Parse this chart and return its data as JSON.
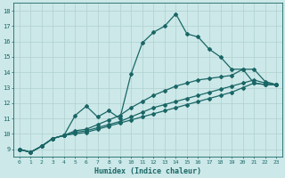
{
  "xlabel": "Humidex (Indice chaleur)",
  "xlim": [
    -0.5,
    23.5
  ],
  "ylim": [
    8.5,
    18.5
  ],
  "xticks": [
    0,
    1,
    2,
    3,
    4,
    5,
    6,
    7,
    8,
    9,
    10,
    11,
    12,
    13,
    14,
    15,
    16,
    17,
    18,
    19,
    20,
    21,
    22,
    23
  ],
  "yticks": [
    9,
    10,
    11,
    12,
    13,
    14,
    15,
    16,
    17,
    18
  ],
  "bg_color": "#cce8e8",
  "grid_color": "#b0d0d0",
  "line_color": "#1a6666",
  "lines": [
    {
      "x": [
        0,
        1,
        2,
        3,
        4,
        5,
        6,
        7,
        8,
        9,
        10,
        11,
        12,
        13,
        14,
        15,
        16,
        17,
        18,
        19,
        20,
        21,
        22,
        23
      ],
      "y": [
        9.0,
        8.8,
        9.2,
        9.7,
        9.9,
        11.2,
        11.8,
        11.1,
        11.5,
        11.0,
        13.9,
        15.9,
        16.6,
        17.0,
        17.8,
        16.5,
        16.3,
        15.5,
        15.0,
        14.2,
        14.2,
        13.3,
        13.2,
        13.2
      ]
    },
    {
      "x": [
        0,
        1,
        2,
        3,
        4,
        5,
        6,
        7,
        8,
        9,
        10,
        11,
        12,
        13,
        14,
        15,
        16,
        17,
        18,
        19,
        20,
        21,
        22,
        23
      ],
      "y": [
        9.0,
        8.8,
        9.2,
        9.7,
        9.9,
        10.2,
        10.3,
        10.6,
        10.9,
        11.2,
        11.7,
        12.1,
        12.5,
        12.8,
        13.1,
        13.3,
        13.5,
        13.6,
        13.7,
        13.8,
        14.2,
        14.2,
        13.4,
        13.2
      ]
    },
    {
      "x": [
        0,
        1,
        2,
        3,
        4,
        5,
        6,
        7,
        8,
        9,
        10,
        11,
        12,
        13,
        14,
        15,
        16,
        17,
        18,
        19,
        20,
        21,
        22,
        23
      ],
      "y": [
        9.0,
        8.8,
        9.2,
        9.7,
        9.9,
        10.1,
        10.2,
        10.4,
        10.6,
        10.8,
        11.1,
        11.4,
        11.7,
        11.9,
        12.1,
        12.3,
        12.5,
        12.7,
        12.9,
        13.1,
        13.3,
        13.5,
        13.3,
        13.2
      ]
    },
    {
      "x": [
        0,
        1,
        2,
        3,
        4,
        5,
        6,
        7,
        8,
        9,
        10,
        11,
        12,
        13,
        14,
        15,
        16,
        17,
        18,
        19,
        20,
        21,
        22,
        23
      ],
      "y": [
        9.0,
        8.8,
        9.2,
        9.7,
        9.9,
        10.0,
        10.1,
        10.3,
        10.5,
        10.7,
        10.9,
        11.1,
        11.3,
        11.5,
        11.7,
        11.9,
        12.1,
        12.3,
        12.5,
        12.7,
        13.0,
        13.3,
        13.2,
        13.2
      ]
    }
  ],
  "marker": "D",
  "markersize": 2.0,
  "lw": 0.9
}
